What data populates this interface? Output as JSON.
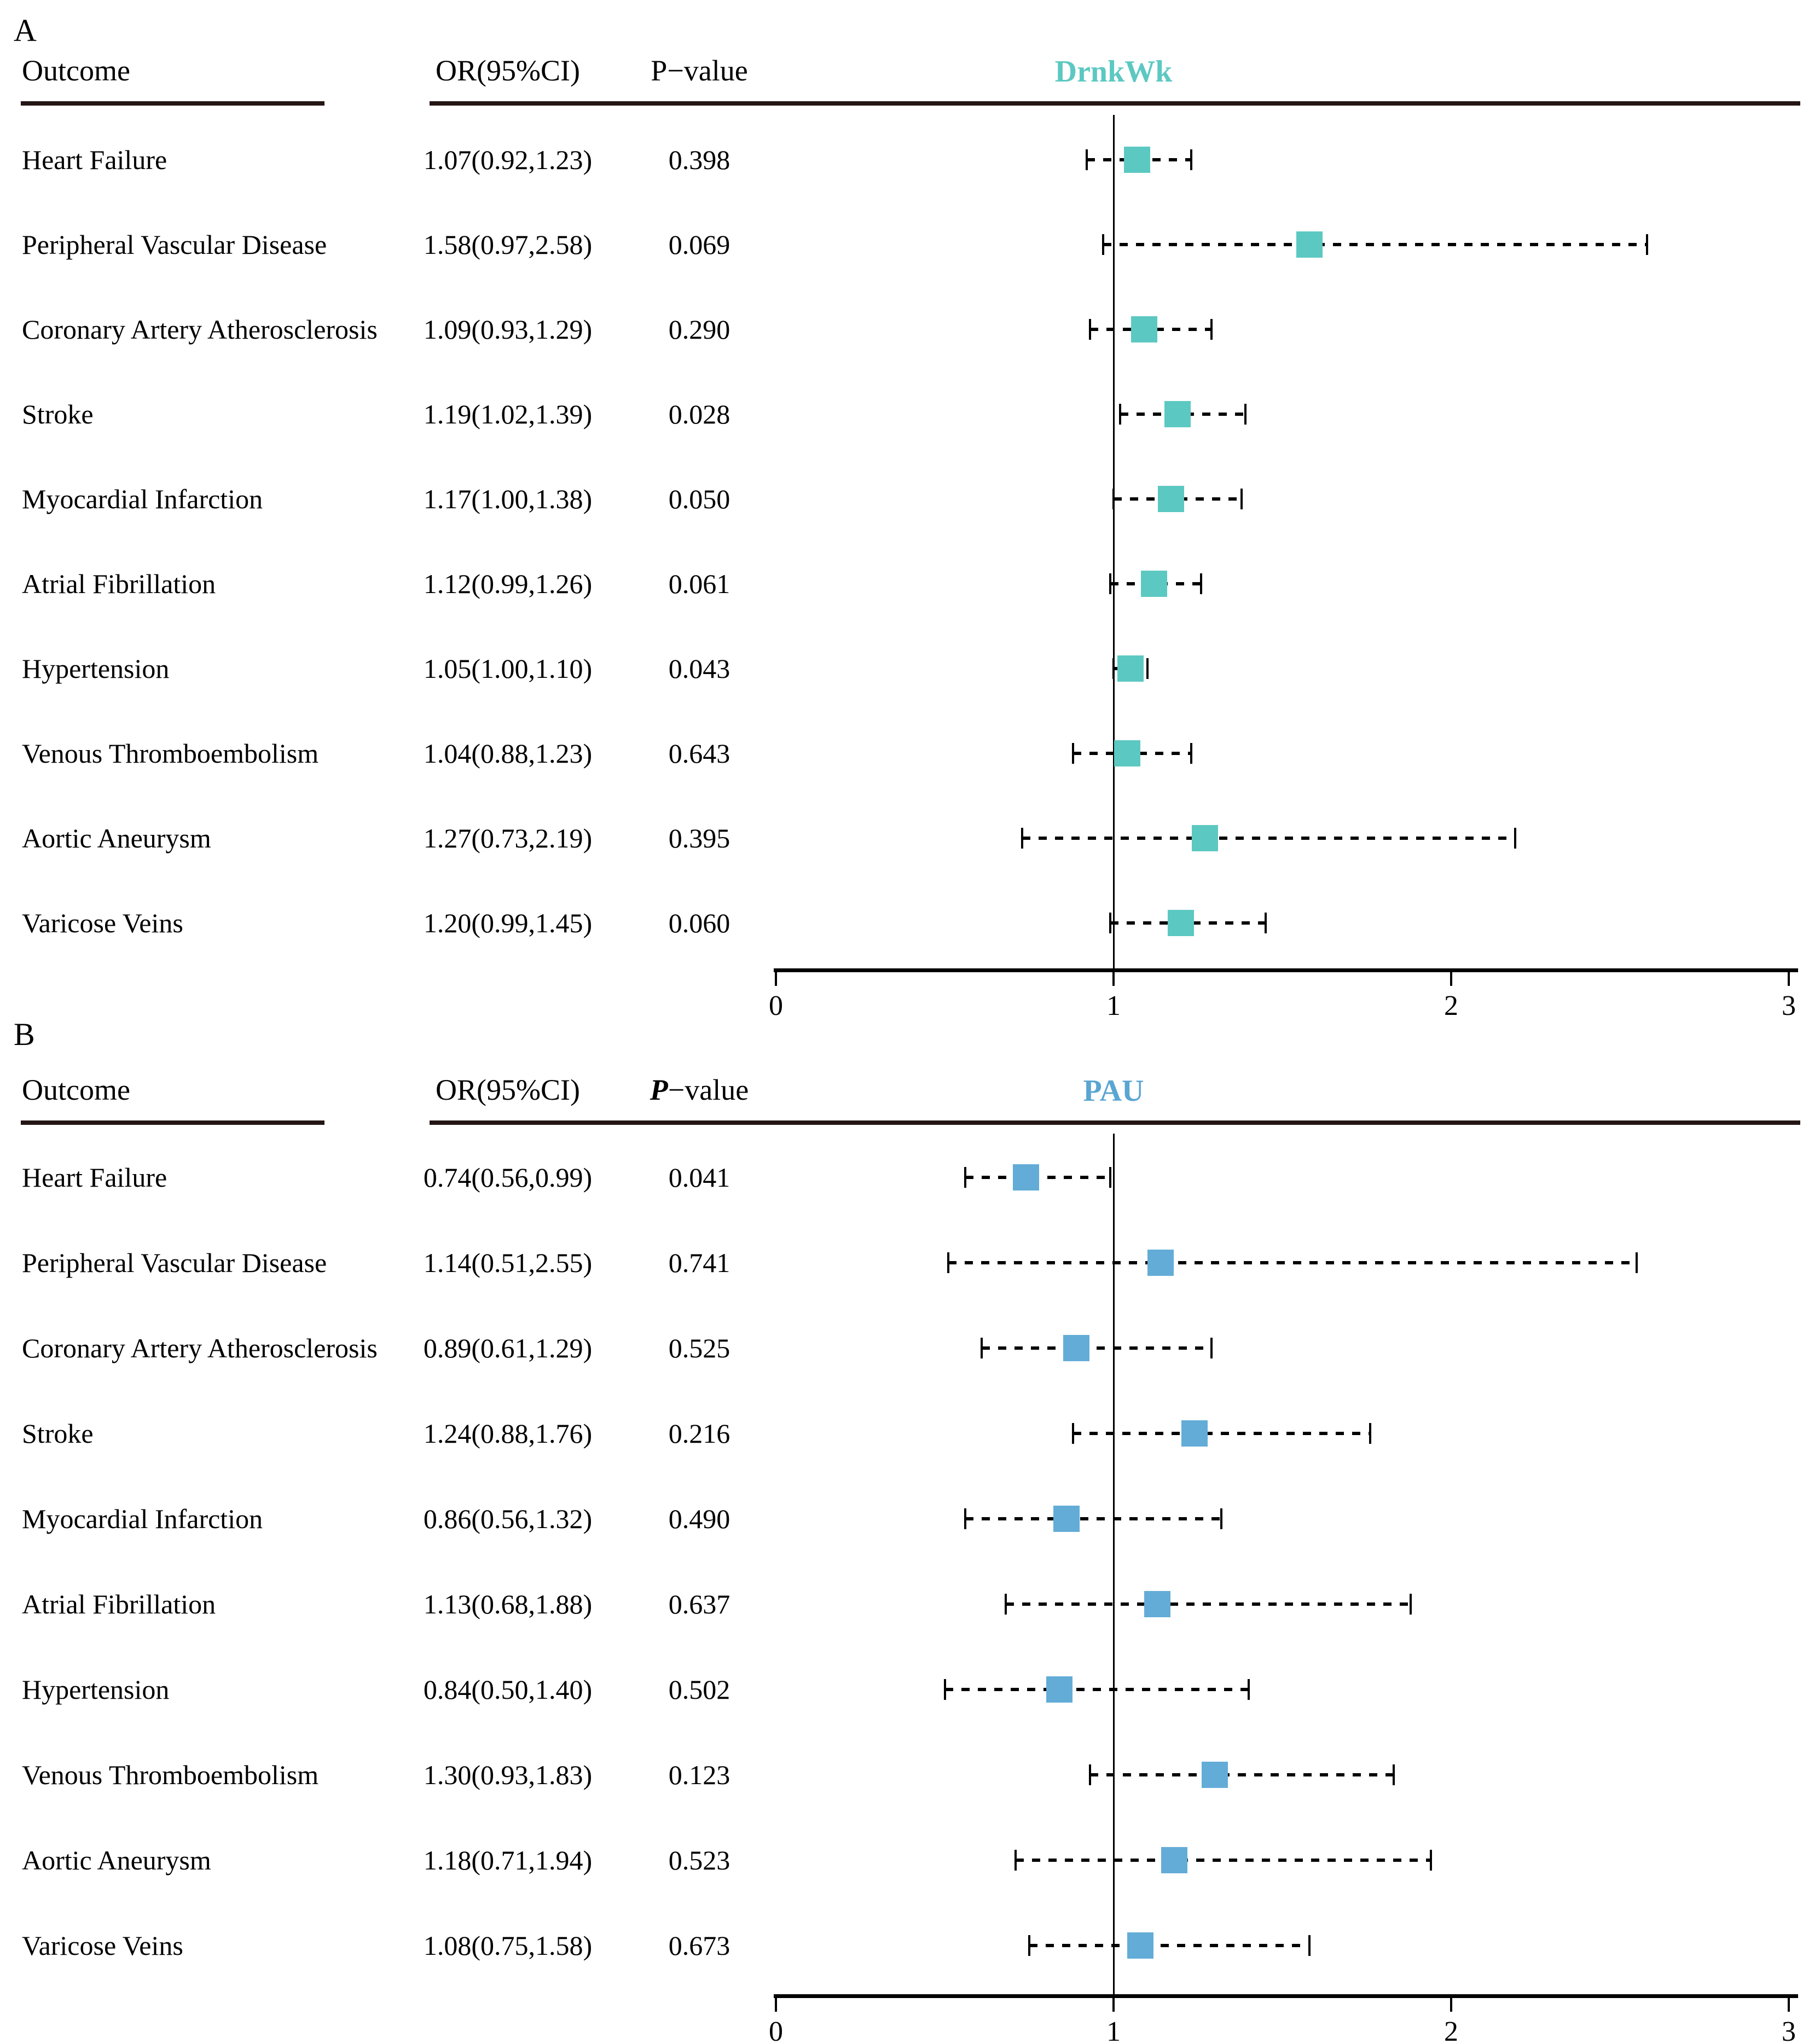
{
  "figure": {
    "description_title": "Forest plots of associations with cardiovascular outcomes",
    "background": "#ffffff",
    "text_color": "#000000",
    "rule_color": "#241614"
  },
  "axis": {
    "xlim": [
      0,
      3
    ],
    "xticks": [
      0,
      1,
      2,
      3
    ],
    "refline": 1,
    "grid": false
  },
  "chart_data": [
    {
      "type": "forest",
      "panel_label": "A",
      "title": "DrnkWk",
      "title_color": "#5cc8c2",
      "marker_color": "#5cc8c2",
      "col_outcome": "Outcome",
      "col_or": "OR(95%CI)",
      "col_p": "P−value",
      "p_italic": false,
      "xlim": [
        0,
        3
      ],
      "xticks": [
        0,
        1,
        2,
        3
      ],
      "refline": 1,
      "rows": [
        {
          "outcome": "Heart Failure",
          "or_ci": "1.07(0.92,1.23)",
          "p": "0.398",
          "or": 1.07,
          "lo": 0.92,
          "hi": 1.23
        },
        {
          "outcome": "Peripheral Vascular Disease",
          "or_ci": "1.58(0.97,2.58)",
          "p": "0.069",
          "or": 1.58,
          "lo": 0.97,
          "hi": 2.58
        },
        {
          "outcome": "Coronary Artery Atherosclerosis",
          "or_ci": "1.09(0.93,1.29)",
          "p": "0.290",
          "or": 1.09,
          "lo": 0.93,
          "hi": 1.29
        },
        {
          "outcome": "Stroke",
          "or_ci": "1.19(1.02,1.39)",
          "p": "0.028",
          "or": 1.19,
          "lo": 1.02,
          "hi": 1.39
        },
        {
          "outcome": "Myocardial Infarction",
          "or_ci": "1.17(1.00,1.38)",
          "p": "0.050",
          "or": 1.17,
          "lo": 1.0,
          "hi": 1.38
        },
        {
          "outcome": "Atrial Fibrillation",
          "or_ci": "1.12(0.99,1.26)",
          "p": "0.061",
          "or": 1.12,
          "lo": 0.99,
          "hi": 1.26
        },
        {
          "outcome": "Hypertension",
          "or_ci": "1.05(1.00,1.10)",
          "p": "0.043",
          "or": 1.05,
          "lo": 1.0,
          "hi": 1.1
        },
        {
          "outcome": "Venous Thromboembolism",
          "or_ci": "1.04(0.88,1.23)",
          "p": "0.643",
          "or": 1.04,
          "lo": 0.88,
          "hi": 1.23
        },
        {
          "outcome": "Aortic Aneurysm",
          "or_ci": "1.27(0.73,2.19)",
          "p": "0.395",
          "or": 1.27,
          "lo": 0.73,
          "hi": 2.19
        },
        {
          "outcome": "Varicose Veins",
          "or_ci": "1.20(0.99,1.45)",
          "p": "0.060",
          "or": 1.2,
          "lo": 0.99,
          "hi": 1.45
        }
      ]
    },
    {
      "type": "forest",
      "panel_label": "B",
      "title": "PAU",
      "title_color": "#5aa5d2",
      "marker_color": "#63acd7",
      "col_outcome": "Outcome",
      "col_or": "OR(95%CI)",
      "col_p": "P−value",
      "p_italic": true,
      "xlim": [
        0,
        3
      ],
      "xticks": [
        0,
        1,
        2,
        3
      ],
      "refline": 1,
      "rows": [
        {
          "outcome": "Heart Failure",
          "or_ci": "0.74(0.56,0.99)",
          "p": "0.041",
          "or": 0.74,
          "lo": 0.56,
          "hi": 0.99
        },
        {
          "outcome": "Peripheral Vascular Disease",
          "or_ci": "1.14(0.51,2.55)",
          "p": "0.741",
          "or": 1.14,
          "lo": 0.51,
          "hi": 2.55
        },
        {
          "outcome": "Coronary Artery Atherosclerosis",
          "or_ci": "0.89(0.61,1.29)",
          "p": "0.525",
          "or": 0.89,
          "lo": 0.61,
          "hi": 1.29
        },
        {
          "outcome": "Stroke",
          "or_ci": "1.24(0.88,1.76)",
          "p": "0.216",
          "or": 1.24,
          "lo": 0.88,
          "hi": 1.76
        },
        {
          "outcome": "Myocardial Infarction",
          "or_ci": "0.86(0.56,1.32)",
          "p": "0.490",
          "or": 0.86,
          "lo": 0.56,
          "hi": 1.32
        },
        {
          "outcome": "Atrial Fibrillation",
          "or_ci": "1.13(0.68,1.88)",
          "p": "0.637",
          "or": 1.13,
          "lo": 0.68,
          "hi": 1.88
        },
        {
          "outcome": "Hypertension",
          "or_ci": "0.84(0.50,1.40)",
          "p": "0.502",
          "or": 0.84,
          "lo": 0.5,
          "hi": 1.4
        },
        {
          "outcome": "Venous Thromboembolism",
          "or_ci": "1.30(0.93,1.83)",
          "p": "0.123",
          "or": 1.3,
          "lo": 0.93,
          "hi": 1.83
        },
        {
          "outcome": "Aortic Aneurysm",
          "or_ci": "1.18(0.71,1.94)",
          "p": "0.523",
          "or": 1.18,
          "lo": 0.71,
          "hi": 1.94
        },
        {
          "outcome": "Varicose Veins",
          "or_ci": "1.08(0.75,1.58)",
          "p": "0.673",
          "or": 1.08,
          "lo": 0.75,
          "hi": 1.58
        }
      ]
    }
  ]
}
